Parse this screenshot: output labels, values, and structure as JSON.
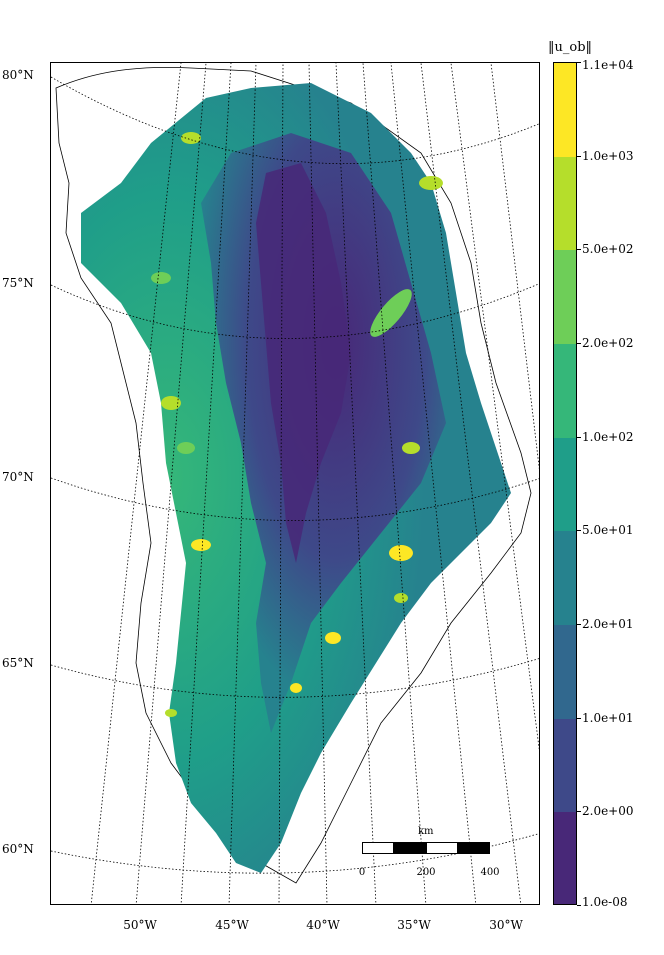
{
  "colorbar": {
    "title": "‖u_ob‖",
    "labels": [
      "1.1e+04",
      "1.0e+03",
      "5.0e+02",
      "2.0e+02",
      "1.0e+02",
      "5.0e+01",
      "2.0e+01",
      "1.0e+01",
      "2.0e+00",
      "1.0e-08"
    ],
    "colors": [
      "#fde725",
      "#b5de2b",
      "#6ece58",
      "#35b779",
      "#1f9e89",
      "#26828e",
      "#31688e",
      "#3e4989",
      "#482878",
      "#440154"
    ]
  },
  "latitude_labels": [
    "80°N",
    "75°N",
    "70°N",
    "65°N",
    "60°N"
  ],
  "longitude_labels": [
    "50°W",
    "45°W",
    "40°W",
    "35°W",
    "30°W"
  ],
  "scalebar": {
    "unit": "km",
    "ticks": [
      "0",
      "200",
      "400"
    ]
  },
  "map": {
    "ocean_color": "#ffffff",
    "coast_color": "#000000",
    "ice_sheet_gradient": [
      "#440154",
      "#482878",
      "#3e4989",
      "#31688e",
      "#26828e",
      "#1f9e89",
      "#35b779",
      "#6ece58",
      "#b5de2b",
      "#fde725"
    ]
  }
}
